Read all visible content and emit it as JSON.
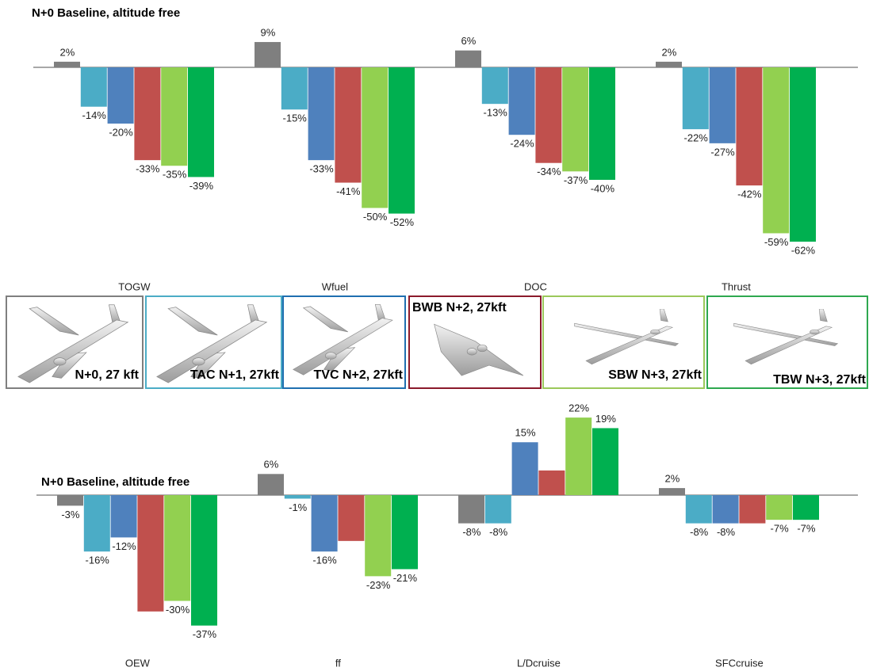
{
  "chart_data": [
    {
      "type": "bar",
      "title": "N+0 Baseline, altitude free",
      "categories": [
        "TOGW",
        "Wfuel",
        "DOC",
        "Thrust"
      ],
      "series": [
        {
          "name": "N+0, 27 kft",
          "color": "#7f7f7f",
          "values": [
            2,
            9,
            6,
            2
          ],
          "value_labels": [
            "2%",
            "9%",
            "6%",
            "2%"
          ]
        },
        {
          "name": "TAC N+1, 27kft",
          "color": "#4bacc6",
          "values": [
            -14,
            -15,
            -13,
            -22
          ],
          "value_labels": [
            "-14%",
            "-15%",
            "-13%",
            "-22%"
          ]
        },
        {
          "name": "TVC N+2, 27kft",
          "color": "#4f81bd",
          "values": [
            -20,
            -33,
            -24,
            -27
          ],
          "value_labels": [
            "-20%",
            "-33%",
            "-24%",
            "-27%"
          ]
        },
        {
          "name": "BWB N+2, 27kft",
          "color": "#c0504d",
          "values": [
            -33,
            -41,
            -34,
            -42
          ],
          "value_labels": [
            "-33%",
            "-41%",
            "-34%",
            "-42%"
          ]
        },
        {
          "name": "SBW N+3, 27kft",
          "color": "#92d050",
          "values": [
            -35,
            -50,
            -37,
            -59
          ],
          "value_labels": [
            "-35%",
            "-50%",
            "-37%",
            "-59%"
          ]
        },
        {
          "name": "TBW N+3, 27kft",
          "color": "#00b050",
          "values": [
            -39,
            -52,
            -40,
            -62
          ],
          "value_labels": [
            "-39%",
            "-52%",
            "-40%",
            "-62%"
          ]
        }
      ]
    },
    {
      "type": "bar",
      "title": "N+0 Baseline, altitude free",
      "categories": [
        "OEW",
        "ff",
        "L/Dcruise",
        "SFCcruise"
      ],
      "series": [
        {
          "color": "#7f7f7f",
          "values": [
            -3,
            6,
            -8,
            2
          ],
          "value_labels": [
            "-3%",
            "6%",
            "-8%",
            "2%"
          ]
        },
        {
          "color": "#4bacc6",
          "values": [
            -16,
            -1,
            -8,
            -8
          ],
          "value_labels": [
            "-16%",
            "-1%",
            "-8%",
            "-8%"
          ]
        },
        {
          "color": "#4f81bd",
          "values": [
            -12,
            -16,
            15,
            -8
          ],
          "value_labels": [
            "-12%",
            "-16%",
            "15%",
            "-8%"
          ]
        },
        {
          "color": "#c0504d",
          "values": [
            -33,
            -13,
            7,
            -8
          ],
          "value_labels": [
            null,
            null,
            null,
            null
          ]
        },
        {
          "color": "#92d050",
          "values": [
            -30,
            -23,
            22,
            -7
          ],
          "value_labels": [
            "-30%",
            "-23%",
            "22%",
            "-7%"
          ]
        },
        {
          "color": "#00b050",
          "values": [
            -37,
            -21,
            19,
            -7
          ],
          "value_labels": [
            "-37%",
            "-21%",
            "19%",
            "-7%"
          ]
        }
      ]
    }
  ]
}
